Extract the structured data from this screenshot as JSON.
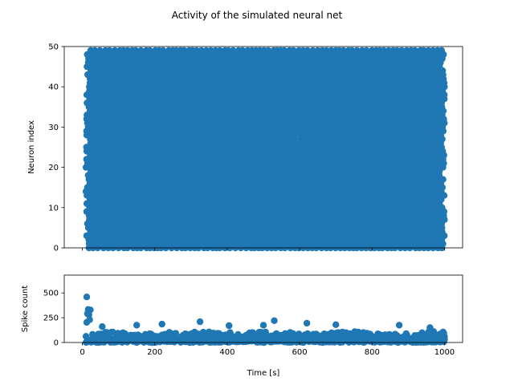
{
  "title": "Activity of the simulated neural net",
  "colors": {
    "marker": "#1f77b4",
    "axis": "#000000",
    "background": "#ffffff"
  },
  "chart_data": [
    {
      "type": "scatter",
      "name": "raster",
      "xlabel": "",
      "ylabel": "Neuron index",
      "xlim": [
        -50,
        1050
      ],
      "ylim": [
        0,
        50
      ],
      "xticks": [
        0,
        200,
        400,
        600,
        800,
        1000
      ],
      "xtick_labels_visible": false,
      "yticks": [
        0,
        10,
        20,
        30,
        40,
        50
      ],
      "grid": false,
      "spike_time_range": [
        10,
        1000
      ],
      "neuron_range": [
        0,
        49
      ],
      "marker": "filled circle",
      "description_of_density": "dense diagonal stripes of spikes across all neurons, roughly one spike per neuron every ~12 s"
    },
    {
      "type": "scatter",
      "name": "spike-count",
      "xlabel": "Time [s]",
      "ylabel": "Spike count",
      "xlim": [
        -50,
        1050
      ],
      "ylim": [
        0,
        680
      ],
      "xticks": [
        0,
        200,
        400,
        600,
        800,
        1000
      ],
      "yticks": [
        0,
        250,
        500
      ],
      "grid": false,
      "peaks": [
        {
          "x": 12,
          "y": 460
        },
        {
          "x": 55,
          "y": 160
        },
        {
          "x": 150,
          "y": 175
        },
        {
          "x": 220,
          "y": 185
        },
        {
          "x": 325,
          "y": 210
        },
        {
          "x": 405,
          "y": 170
        },
        {
          "x": 500,
          "y": 175
        },
        {
          "x": 530,
          "y": 220
        },
        {
          "x": 620,
          "y": 195
        },
        {
          "x": 700,
          "y": 180
        },
        {
          "x": 875,
          "y": 175
        },
        {
          "x": 960,
          "y": 150
        }
      ],
      "baseline_range": [
        0,
        120
      ]
    }
  ],
  "labels": {
    "top_y": "Neuron index",
    "bottom_y": "Spike count",
    "bottom_x": "Time [s]",
    "x_ticks": [
      "0",
      "200",
      "400",
      "600",
      "800",
      "1000"
    ],
    "top_y_ticks": [
      "0",
      "10",
      "20",
      "30",
      "40",
      "50"
    ],
    "bottom_y_ticks": [
      "0",
      "250",
      "500"
    ]
  }
}
